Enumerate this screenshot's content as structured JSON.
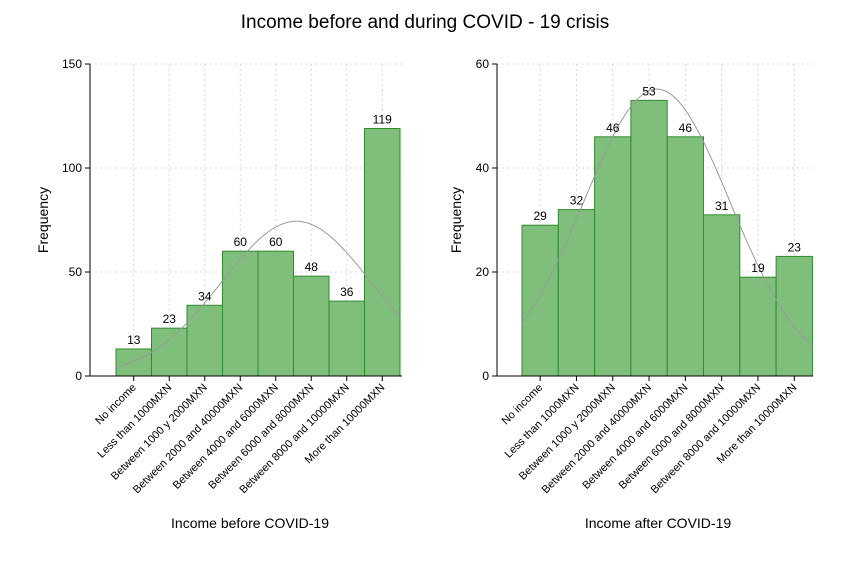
{
  "figure": {
    "title": "Income before and during COVID - 19 crisis"
  },
  "colors": {
    "bar_fill": "#7fbf7b",
    "bar_stroke": "#2e8b2e",
    "curve": "#9a9a9a",
    "grid": "#d9d9d9"
  },
  "chart_data": [
    {
      "type": "bar",
      "title": "",
      "xlabel": "Income before COVID-19",
      "ylabel": "Frequency",
      "ylim": [
        0,
        150
      ],
      "yticks": [
        0,
        50,
        100,
        150
      ],
      "grid": true,
      "overlay": "normal density curve",
      "categories": [
        "No income",
        "Less than 1000MXN",
        "Between 1000 y 2000MXN",
        "Between 2000 and 40000MXN",
        "Between 4000 and 6000MXN",
        "Between 6000 and 8000MXN",
        "Between 8000 and 10000MXN",
        "More than 10000MXN"
      ],
      "values": [
        13,
        23,
        34,
        60,
        60,
        48,
        36,
        119
      ]
    },
    {
      "type": "bar",
      "title": "",
      "xlabel": "Income after COVID-19",
      "ylabel": "Frequency",
      "ylim": [
        0,
        60
      ],
      "yticks": [
        0,
        20,
        40,
        60
      ],
      "grid": true,
      "overlay": "normal density curve",
      "categories": [
        "No income",
        "Less than 1000MXN",
        "Between 1000 y 2000MXN",
        "Between 2000 and 40000MXN",
        "Between 4000 and 6000MXN",
        "Between 6000 and 8000MXN",
        "Between 8000 and 10000MXN",
        "More than 10000MXN"
      ],
      "values": [
        29,
        32,
        46,
        53,
        46,
        31,
        19,
        23
      ]
    }
  ]
}
